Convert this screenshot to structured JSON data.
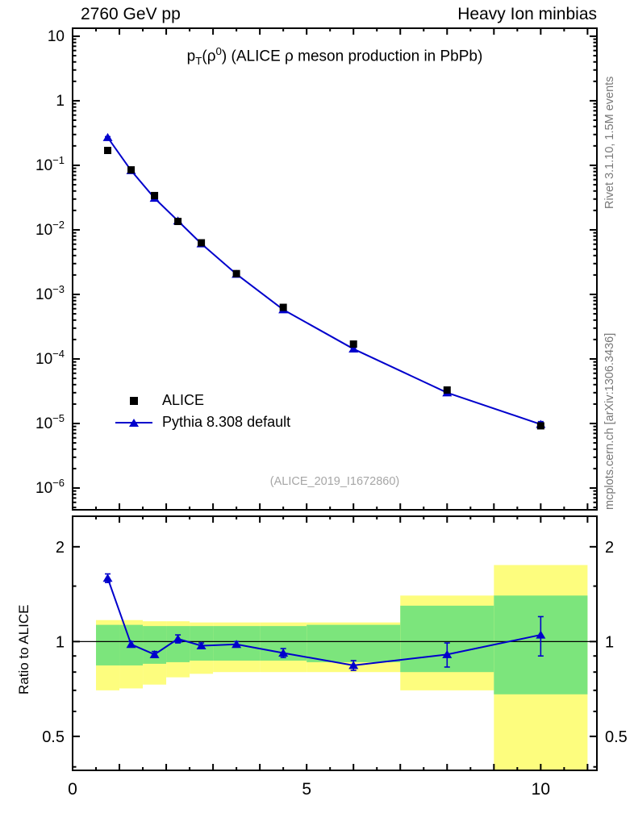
{
  "header": {
    "left": "2760 GeV pp",
    "right": "Heavy Ion minbias"
  },
  "title_parts": [
    [
      "p",
      "n"
    ],
    [
      "T",
      "sub"
    ],
    [
      "(ρ",
      "n"
    ],
    [
      "0",
      "sup"
    ],
    [
      ") (ALICE ρ meson production in PbPb)",
      "n"
    ]
  ],
  "title_text": "pT(ρ0) (ALICE ρ meson production in PbPb)",
  "legend": [
    {
      "label": "ALICE",
      "marker": "black-square"
    },
    {
      "label": "Pythia 8.308 default",
      "marker": "blue-triangle-line"
    }
  ],
  "watermark": "(ALICE_2019_I1672860)",
  "side_notes": {
    "top": "Rivet 3.1.10,  1.5M events",
    "bottom": "mcplots.cern.ch [arXiv:1306.3436]"
  },
  "ratio_ylabel": "Ratio to ALICE",
  "colors": {
    "pythia_blue": "#0000cc",
    "alice_black": "#000000",
    "band_yellow": "#fdfd7e",
    "band_green": "#7ce57c",
    "watermark_gray": "#a6a6a6",
    "note_gray": "#787878"
  },
  "chart_data": [
    {
      "type": "scatter",
      "panel": "main",
      "title": "pT(rho0) (ALICE rho meson production in PbPb)",
      "yscale": "log",
      "xlim": [
        0,
        11.2
      ],
      "ylim": [
        4.6e-07,
        13.3
      ],
      "x_ticks_labeled": [
        0,
        5,
        10
      ],
      "y_tick_exponents": [
        1,
        0,
        -1,
        -2,
        -3,
        -4,
        -5,
        -6
      ],
      "grid": false,
      "legend_position": "middle-left",
      "series": [
        {
          "name": "ALICE",
          "marker": "square",
          "color": "#000000",
          "x": [
            0.75,
            1.25,
            1.75,
            2.25,
            2.75,
            3.5,
            4.5,
            6,
            8,
            10
          ],
          "y": [
            0.17,
            0.085,
            0.034,
            0.0135,
            0.0063,
            0.0021,
            0.00063,
            0.00017,
            3.3e-05,
            9.2e-06
          ],
          "yerr": [
            0,
            0,
            0,
            0,
            0,
            0,
            0,
            0,
            0,
            0
          ]
        },
        {
          "name": "Pythia 8.308 default",
          "marker": "triangle",
          "color": "#0000cc",
          "line": true,
          "x": [
            0.75,
            1.25,
            1.75,
            2.25,
            2.75,
            3.5,
            4.5,
            6,
            8,
            10
          ],
          "y": [
            0.27,
            0.083,
            0.031,
            0.0138,
            0.0061,
            0.00206,
            0.00058,
            0.000143,
            3e-05,
            9.7e-06
          ],
          "yerr": [
            0.008,
            0.002,
            0.0008,
            0.0004,
            0.0002,
            6e-05,
            2e-05,
            7e-06,
            2.5e-06,
            1e-06
          ]
        }
      ]
    },
    {
      "type": "ratio",
      "panel": "ratio",
      "ylabel": "Ratio to ALICE",
      "yscale": "log",
      "xlim": [
        0,
        11.2
      ],
      "ylim": [
        0.39,
        2.5
      ],
      "x_ticks_labeled": [
        0,
        5,
        10
      ],
      "y_ticks_labeled": [
        0.5,
        1,
        2
      ],
      "y_ticks_minor": [
        0.4,
        0.6,
        0.7,
        0.8,
        0.9,
        1.5
      ],
      "reference_line": 1,
      "bands": [
        {
          "x0": 0.5,
          "x1": 1.0,
          "yellow": [
            0.7,
            1.17
          ],
          "green": [
            0.84,
            1.13
          ]
        },
        {
          "x0": 1.0,
          "x1": 1.5,
          "yellow": [
            0.71,
            1.17
          ],
          "green": [
            0.84,
            1.13
          ]
        },
        {
          "x0": 1.5,
          "x1": 2.0,
          "yellow": [
            0.73,
            1.16
          ],
          "green": [
            0.85,
            1.12
          ]
        },
        {
          "x0": 2.0,
          "x1": 2.5,
          "yellow": [
            0.77,
            1.16
          ],
          "green": [
            0.86,
            1.12
          ]
        },
        {
          "x0": 2.5,
          "x1": 3.0,
          "yellow": [
            0.79,
            1.15
          ],
          "green": [
            0.87,
            1.12
          ]
        },
        {
          "x0": 3.0,
          "x1": 4.0,
          "yellow": [
            0.8,
            1.15
          ],
          "green": [
            0.87,
            1.12
          ]
        },
        {
          "x0": 4.0,
          "x1": 5.0,
          "yellow": [
            0.8,
            1.15
          ],
          "green": [
            0.87,
            1.12
          ]
        },
        {
          "x0": 5.0,
          "x1": 7.0,
          "yellow": [
            0.8,
            1.15
          ],
          "green": [
            0.86,
            1.13
          ]
        },
        {
          "x0": 7.0,
          "x1": 9.0,
          "yellow": [
            0.7,
            1.4
          ],
          "green": [
            0.8,
            1.3
          ]
        },
        {
          "x0": 9.0,
          "x1": 11.0,
          "yellow": [
            0.3,
            1.75
          ],
          "green": [
            0.68,
            1.4
          ]
        }
      ],
      "series": [
        {
          "name": "Pythia 8.308 default / ALICE",
          "marker": "triangle",
          "color": "#0000cc",
          "line": true,
          "x": [
            0.75,
            1.25,
            1.75,
            2.25,
            2.75,
            3.5,
            4.5,
            6,
            8,
            10
          ],
          "y": [
            1.59,
            0.98,
            0.91,
            1.02,
            0.97,
            0.98,
            0.92,
            0.84,
            0.91,
            1.05
          ],
          "yerr": [
            0.05,
            0.02,
            0.02,
            0.03,
            0.02,
            0.02,
            0.03,
            0.03,
            0.08,
            0.15
          ]
        }
      ]
    }
  ]
}
